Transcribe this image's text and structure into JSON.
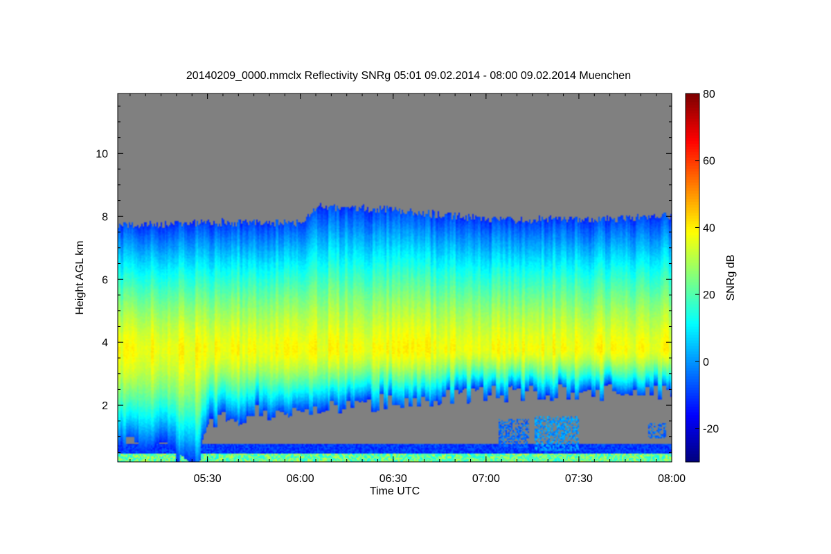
{
  "chart_data": {
    "type": "heatmap",
    "title": "20140209_0000.mmclx Reflectivity SNRg   05:01 09.02.2014 - 08:00 09.02.2014 Muenchen",
    "xlabel": "Time UTC",
    "ylabel": "Height AGL km",
    "colorbar_label": "SNRg dB",
    "x_range_hours": [
      5.0167,
      8.0
    ],
    "y_range_km": [
      0.2,
      11.9
    ],
    "x_ticks": [
      {
        "value": 5.5,
        "label": "05:30"
      },
      {
        "value": 6.0,
        "label": "06:00"
      },
      {
        "value": 6.5,
        "label": "06:30"
      },
      {
        "value": 7.0,
        "label": "07:00"
      },
      {
        "value": 7.5,
        "label": "07:30"
      },
      {
        "value": 8.0,
        "label": "08:00"
      }
    ],
    "y_ticks": [
      {
        "value": 2,
        "label": "2"
      },
      {
        "value": 4,
        "label": "4"
      },
      {
        "value": 6,
        "label": "6"
      },
      {
        "value": 8,
        "label": "8"
      },
      {
        "value": 10,
        "label": "10"
      }
    ],
    "colorbar_range_db": [
      -30,
      80
    ],
    "colorbar_ticks": [
      {
        "value": -20,
        "label": "-20"
      },
      {
        "value": 0,
        "label": "0"
      },
      {
        "value": 20,
        "label": "20"
      },
      {
        "value": 40,
        "label": "40"
      },
      {
        "value": 60,
        "label": "60"
      },
      {
        "value": 80,
        "label": "80"
      }
    ],
    "colormap": "jet",
    "no_signal_color": "#808080",
    "cloud_top_km": [
      {
        "t": 5.0167,
        "h": 7.7
      },
      {
        "t": 5.5,
        "h": 7.8
      },
      {
        "t": 6.0,
        "h": 7.8
      },
      {
        "t": 6.1,
        "h": 8.3
      },
      {
        "t": 6.5,
        "h": 8.2
      },
      {
        "t": 7.0,
        "h": 7.9
      },
      {
        "t": 7.5,
        "h": 7.9
      },
      {
        "t": 8.0,
        "h": 8.0
      }
    ],
    "cloud_base_km": [
      {
        "t": 5.0167,
        "h": 1.0
      },
      {
        "t": 5.2,
        "h": 1.0
      },
      {
        "t": 5.45,
        "h": 0.4
      },
      {
        "t": 5.5,
        "h": 1.7
      },
      {
        "t": 5.75,
        "h": 2.0
      },
      {
        "t": 6.0,
        "h": 2.1
      },
      {
        "t": 6.5,
        "h": 2.4
      },
      {
        "t": 7.0,
        "h": 2.6
      },
      {
        "t": 7.5,
        "h": 2.7
      },
      {
        "t": 8.0,
        "h": 2.7
      }
    ],
    "core_snr_db": 38,
    "core_height_km": 3.8,
    "edge_snr_db": -10
  }
}
